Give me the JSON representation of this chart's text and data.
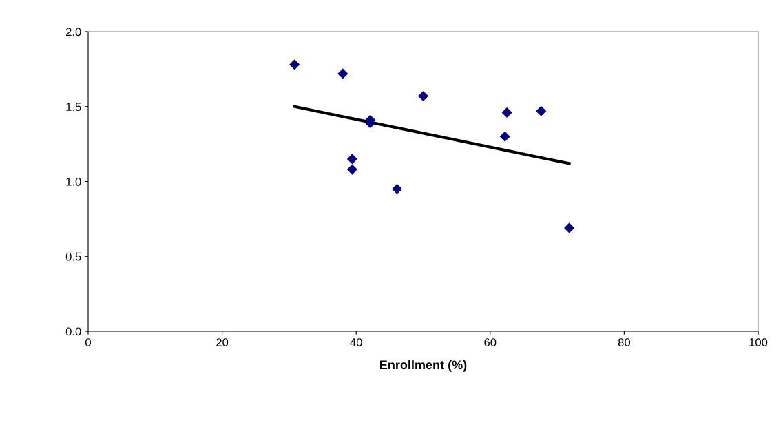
{
  "chart_data": {
    "type": "scatter",
    "xlabel": "Enrollment (%)",
    "xlim": [
      0,
      100
    ],
    "xticks": [
      0,
      20,
      40,
      60,
      80,
      100
    ],
    "ylim": [
      0.0,
      2.0
    ],
    "yticks": [
      {
        "value": 0,
        "label": "0.0"
      },
      {
        "value": 0.5,
        "label": "0.5"
      },
      {
        "value": 1,
        "label": "1.0"
      },
      {
        "value": 1.5,
        "label": "1.5"
      },
      {
        "value": 2,
        "label": "2.0"
      }
    ],
    "grid": false,
    "series": [
      {
        "color": "#000080",
        "marker": "diamond",
        "x": [
          30.8,
          38.0,
          42.1,
          42.1,
          39.4,
          39.4,
          46.1,
          50.0,
          62.5,
          62.2,
          67.6,
          71.8
        ],
        "values": [
          1.78,
          1.72,
          1.41,
          1.39,
          1.15,
          1.08,
          0.95,
          1.57,
          1.46,
          1.3,
          1.47,
          0.69
        ]
      },
      {
        "type": "line",
        "color": "#000000",
        "marker": "none",
        "line_style": "solid",
        "x": [
          30.8,
          71.8
        ],
        "values": [
          1.5,
          1.12
        ]
      }
    ]
  }
}
